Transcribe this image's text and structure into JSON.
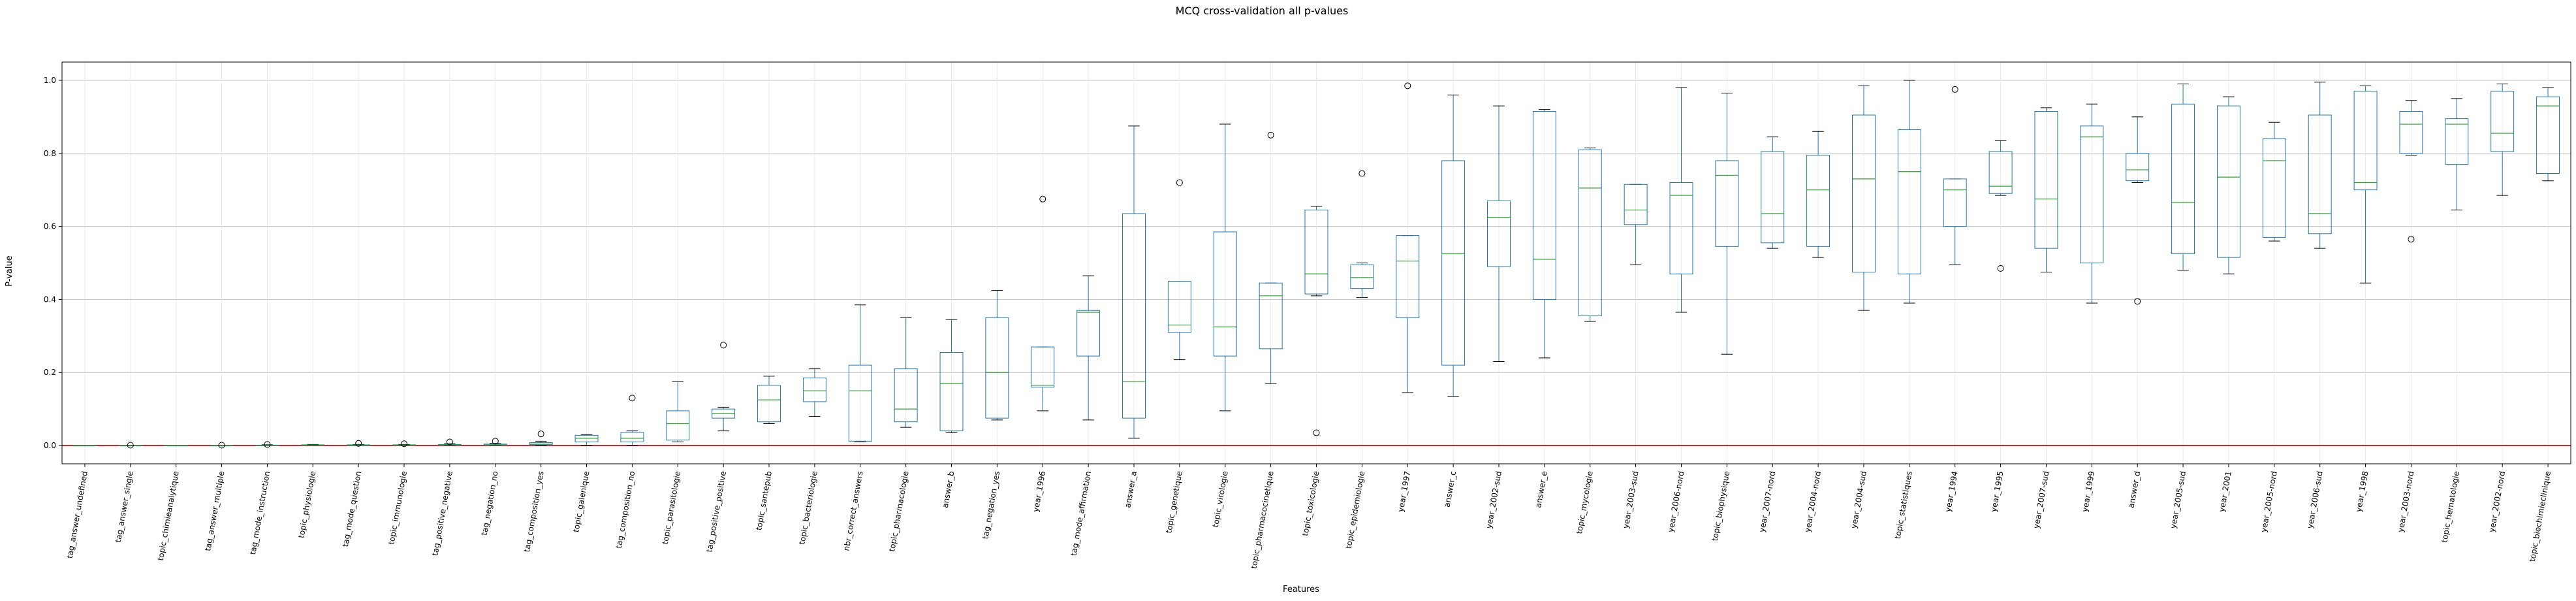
{
  "chart_data": {
    "type": "boxplot",
    "title": "MCQ cross-validation all p-values",
    "xlabel": "Features",
    "ylabel": "P-value",
    "ylim": [
      -0.05,
      1.05
    ],
    "yticks": [
      "0.0",
      "0.2",
      "0.4",
      "0.6",
      "0.8",
      "1.0"
    ],
    "grid": true,
    "reference_line": 0.0,
    "colors": {
      "box": "#1f77b4",
      "median": "#2ca02c",
      "reference": "#d62728",
      "grid": "#b0b0b0",
      "outlier": "#000000"
    },
    "boxes": [
      {
        "label": "tag_answer_undefined",
        "whislo": 0.0,
        "q1": 0.0,
        "med": 0.0,
        "q3": 0.0,
        "whishi": 0.0,
        "fliers": []
      },
      {
        "label": "tag_answer_single",
        "whislo": 0.0,
        "q1": 0.0,
        "med": 0.0,
        "q3": 0.0,
        "whishi": 0.0,
        "fliers": [
          0.001
        ]
      },
      {
        "label": "topic_chimieanalytique",
        "whislo": 0.0,
        "q1": 0.0,
        "med": 0.0,
        "q3": 0.0,
        "whishi": 0.0,
        "fliers": []
      },
      {
        "label": "tag_answer_multiple",
        "whislo": 0.0,
        "q1": 0.0,
        "med": 0.0,
        "q3": 0.0,
        "whishi": 0.0,
        "fliers": [
          0.001
        ]
      },
      {
        "label": "tag_mode_instruction",
        "whislo": 0.0,
        "q1": 0.0,
        "med": 0.0,
        "q3": 0.001,
        "whishi": 0.002,
        "fliers": [
          0.003
        ]
      },
      {
        "label": "topic_physiologie",
        "whislo": 0.0,
        "q1": 0.001,
        "med": 0.001,
        "q3": 0.002,
        "whishi": 0.003,
        "fliers": []
      },
      {
        "label": "tag_mode_question",
        "whislo": 0.0,
        "q1": 0.0,
        "med": 0.001,
        "q3": 0.002,
        "whishi": 0.003,
        "fliers": [
          0.006
        ]
      },
      {
        "label": "topic_immunologie",
        "whislo": 0.0,
        "q1": 0.001,
        "med": 0.001,
        "q3": 0.002,
        "whishi": 0.003,
        "fliers": [
          0.005
        ]
      },
      {
        "label": "tag_positive_negative",
        "whislo": 0.0,
        "q1": 0.001,
        "med": 0.002,
        "q3": 0.003,
        "whishi": 0.005,
        "fliers": [
          0.01
        ]
      },
      {
        "label": "tag_negation_no",
        "whislo": 0.0,
        "q1": 0.001,
        "med": 0.002,
        "q3": 0.004,
        "whishi": 0.006,
        "fliers": [
          0.012
        ]
      },
      {
        "label": "tag_composition_yes",
        "whislo": 0.0,
        "q1": 0.002,
        "med": 0.004,
        "q3": 0.008,
        "whishi": 0.012,
        "fliers": [
          0.032
        ]
      },
      {
        "label": "topic_galenique",
        "whislo": 0.0,
        "q1": 0.01,
        "med": 0.02,
        "q3": 0.028,
        "whishi": 0.03,
        "fliers": []
      },
      {
        "label": "tag_composition_no",
        "whislo": 0.0,
        "q1": 0.01,
        "med": 0.02,
        "q3": 0.036,
        "whishi": 0.04,
        "fliers": [
          0.13
        ]
      },
      {
        "label": "topic_parasitologie",
        "whislo": 0.01,
        "q1": 0.015,
        "med": 0.06,
        "q3": 0.095,
        "whishi": 0.175,
        "fliers": []
      },
      {
        "label": "tag_positive_positive",
        "whislo": 0.04,
        "q1": 0.075,
        "med": 0.088,
        "q3": 0.1,
        "whishi": 0.105,
        "fliers": [
          0.275
        ]
      },
      {
        "label": "topic_santepub",
        "whislo": 0.06,
        "q1": 0.065,
        "med": 0.125,
        "q3": 0.165,
        "whishi": 0.19,
        "fliers": []
      },
      {
        "label": "topic_bacteriologie",
        "whislo": 0.08,
        "q1": 0.12,
        "med": 0.15,
        "q3": 0.185,
        "whishi": 0.21,
        "fliers": []
      },
      {
        "label": "nbr_correct_answers",
        "whislo": 0.01,
        "q1": 0.012,
        "med": 0.15,
        "q3": 0.22,
        "whishi": 0.385,
        "fliers": []
      },
      {
        "label": "topic_pharmacologie",
        "whislo": 0.05,
        "q1": 0.065,
        "med": 0.1,
        "q3": 0.21,
        "whishi": 0.35,
        "fliers": []
      },
      {
        "label": "answer_b",
        "whislo": 0.035,
        "q1": 0.04,
        "med": 0.17,
        "q3": 0.255,
        "whishi": 0.345,
        "fliers": []
      },
      {
        "label": "tag_negation_yes",
        "whislo": 0.07,
        "q1": 0.075,
        "med": 0.2,
        "q3": 0.35,
        "whishi": 0.425,
        "fliers": []
      },
      {
        "label": "year_1996",
        "whislo": 0.095,
        "q1": 0.16,
        "med": 0.165,
        "q3": 0.27,
        "whishi": 0.27,
        "fliers": [
          0.675
        ]
      },
      {
        "label": "tag_mode_affirmation",
        "whislo": 0.07,
        "q1": 0.245,
        "med": 0.365,
        "q3": 0.37,
        "whishi": 0.465,
        "fliers": []
      },
      {
        "label": "answer_a",
        "whislo": 0.02,
        "q1": 0.075,
        "med": 0.175,
        "q3": 0.635,
        "whishi": 0.875,
        "fliers": []
      },
      {
        "label": "topic_genetique",
        "whislo": 0.235,
        "q1": 0.31,
        "med": 0.33,
        "q3": 0.45,
        "whishi": 0.45,
        "fliers": [
          0.72
        ]
      },
      {
        "label": "topic_virologie",
        "whislo": 0.095,
        "q1": 0.245,
        "med": 0.325,
        "q3": 0.585,
        "whishi": 0.88,
        "fliers": []
      },
      {
        "label": "topic_pharmacocinetique",
        "whislo": 0.17,
        "q1": 0.265,
        "med": 0.41,
        "q3": 0.445,
        "whishi": 0.445,
        "fliers": [
          0.85
        ]
      },
      {
        "label": "topic_toxicologie",
        "whislo": 0.41,
        "q1": 0.415,
        "med": 0.47,
        "q3": 0.645,
        "whishi": 0.655,
        "fliers": [
          0.035
        ]
      },
      {
        "label": "topic_epidemiologie",
        "whislo": 0.405,
        "q1": 0.43,
        "med": 0.46,
        "q3": 0.495,
        "whishi": 0.5,
        "fliers": [
          0.745
        ]
      },
      {
        "label": "year_1997",
        "whislo": 0.145,
        "q1": 0.35,
        "med": 0.505,
        "q3": 0.575,
        "whishi": 0.575,
        "fliers": [
          0.985
        ]
      },
      {
        "label": "answer_c",
        "whislo": 0.135,
        "q1": 0.22,
        "med": 0.525,
        "q3": 0.78,
        "whishi": 0.96,
        "fliers": []
      },
      {
        "label": "year_2002-sud",
        "whislo": 0.23,
        "q1": 0.49,
        "med": 0.625,
        "q3": 0.67,
        "whishi": 0.93,
        "fliers": []
      },
      {
        "label": "answer_e",
        "whislo": 0.24,
        "q1": 0.4,
        "med": 0.51,
        "q3": 0.915,
        "whishi": 0.92,
        "fliers": []
      },
      {
        "label": "topic_mycologie",
        "whislo": 0.34,
        "q1": 0.355,
        "med": 0.705,
        "q3": 0.81,
        "whishi": 0.815,
        "fliers": []
      },
      {
        "label": "year_2003-sud",
        "whislo": 0.495,
        "q1": 0.605,
        "med": 0.645,
        "q3": 0.715,
        "whishi": 0.715,
        "fliers": []
      },
      {
        "label": "year_2006-nord",
        "whislo": 0.365,
        "q1": 0.47,
        "med": 0.685,
        "q3": 0.72,
        "whishi": 0.98,
        "fliers": []
      },
      {
        "label": "topic_biophysique",
        "whislo": 0.25,
        "q1": 0.545,
        "med": 0.74,
        "q3": 0.78,
        "whishi": 0.965,
        "fliers": []
      },
      {
        "label": "year_2007-nord",
        "whislo": 0.54,
        "q1": 0.555,
        "med": 0.635,
        "q3": 0.805,
        "whishi": 0.845,
        "fliers": []
      },
      {
        "label": "year_2004-nord",
        "whislo": 0.515,
        "q1": 0.545,
        "med": 0.7,
        "q3": 0.795,
        "whishi": 0.86,
        "fliers": []
      },
      {
        "label": "year_2004-sud",
        "whislo": 0.37,
        "q1": 0.475,
        "med": 0.73,
        "q3": 0.905,
        "whishi": 0.985,
        "fliers": []
      },
      {
        "label": "topic_statistiques",
        "whislo": 0.39,
        "q1": 0.47,
        "med": 0.75,
        "q3": 0.865,
        "whishi": 1.0,
        "fliers": []
      },
      {
        "label": "year_1994",
        "whislo": 0.495,
        "q1": 0.6,
        "med": 0.7,
        "q3": 0.73,
        "whishi": 0.73,
        "fliers": [
          0.975
        ]
      },
      {
        "label": "year_1995",
        "whislo": 0.685,
        "q1": 0.69,
        "med": 0.71,
        "q3": 0.805,
        "whishi": 0.835,
        "fliers": [
          0.485
        ]
      },
      {
        "label": "year_2007-sud",
        "whislo": 0.475,
        "q1": 0.54,
        "med": 0.675,
        "q3": 0.915,
        "whishi": 0.925,
        "fliers": []
      },
      {
        "label": "year_1999",
        "whislo": 0.39,
        "q1": 0.5,
        "med": 0.845,
        "q3": 0.875,
        "whishi": 0.935,
        "fliers": []
      },
      {
        "label": "answer_d",
        "whislo": 0.72,
        "q1": 0.725,
        "med": 0.755,
        "q3": 0.8,
        "whishi": 0.9,
        "fliers": [
          0.395
        ]
      },
      {
        "label": "year_2005-sud",
        "whislo": 0.48,
        "q1": 0.525,
        "med": 0.665,
        "q3": 0.935,
        "whishi": 0.99,
        "fliers": []
      },
      {
        "label": "year_2001",
        "whislo": 0.47,
        "q1": 0.515,
        "med": 0.735,
        "q3": 0.93,
        "whishi": 0.955,
        "fliers": []
      },
      {
        "label": "year_2005-nord",
        "whislo": 0.56,
        "q1": 0.57,
        "med": 0.78,
        "q3": 0.84,
        "whishi": 0.885,
        "fliers": []
      },
      {
        "label": "year_2006-sud",
        "whislo": 0.54,
        "q1": 0.58,
        "med": 0.635,
        "q3": 0.905,
        "whishi": 0.995,
        "fliers": []
      },
      {
        "label": "year_1998",
        "whislo": 0.445,
        "q1": 0.7,
        "med": 0.72,
        "q3": 0.97,
        "whishi": 0.985,
        "fliers": []
      },
      {
        "label": "year_2003-nord",
        "whislo": 0.795,
        "q1": 0.8,
        "med": 0.88,
        "q3": 0.915,
        "whishi": 0.945,
        "fliers": [
          0.565
        ]
      },
      {
        "label": "topic_hematologie",
        "whislo": 0.645,
        "q1": 0.77,
        "med": 0.88,
        "q3": 0.895,
        "whishi": 0.95,
        "fliers": []
      },
      {
        "label": "year_2002-nord",
        "whislo": 0.685,
        "q1": 0.805,
        "med": 0.855,
        "q3": 0.97,
        "whishi": 0.99,
        "fliers": []
      },
      {
        "label": "topic_biochimieclinique",
        "whislo": 0.725,
        "q1": 0.745,
        "med": 0.93,
        "q3": 0.955,
        "whishi": 0.98,
        "fliers": []
      }
    ]
  }
}
